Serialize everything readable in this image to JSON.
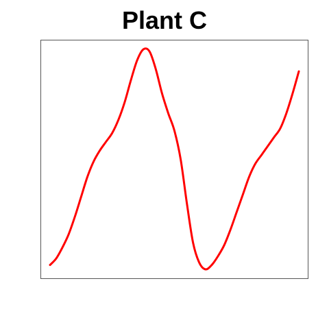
{
  "chart_data": {
    "type": "line",
    "title": "Plant C",
    "xlabel": "",
    "ylabel": "",
    "x": [
      0,
      1,
      2,
      3,
      4,
      5,
      6,
      7,
      8,
      9,
      10,
      11,
      12,
      13,
      14,
      15,
      16,
      17,
      18,
      19,
      20,
      21,
      22,
      23,
      24,
      25,
      26,
      27,
      28,
      29,
      30,
      31,
      32,
      33,
      34,
      35,
      36,
      37,
      38,
      39,
      40
    ],
    "series": [
      {
        "values": [
          0.02,
          0.05,
          0.1,
          0.16,
          0.24,
          0.33,
          0.42,
          0.49,
          0.54,
          0.58,
          0.62,
          0.68,
          0.76,
          0.86,
          0.95,
          1.0,
          0.99,
          0.91,
          0.8,
          0.71,
          0.63,
          0.5,
          0.3,
          0.12,
          0.03,
          0.0,
          0.02,
          0.06,
          0.11,
          0.18,
          0.26,
          0.34,
          0.42,
          0.48,
          0.52,
          0.56,
          0.6,
          0.64,
          0.71,
          0.8,
          0.9
        ],
        "color": "#ff0000"
      }
    ],
    "grid": false,
    "axes_visible": false
  }
}
